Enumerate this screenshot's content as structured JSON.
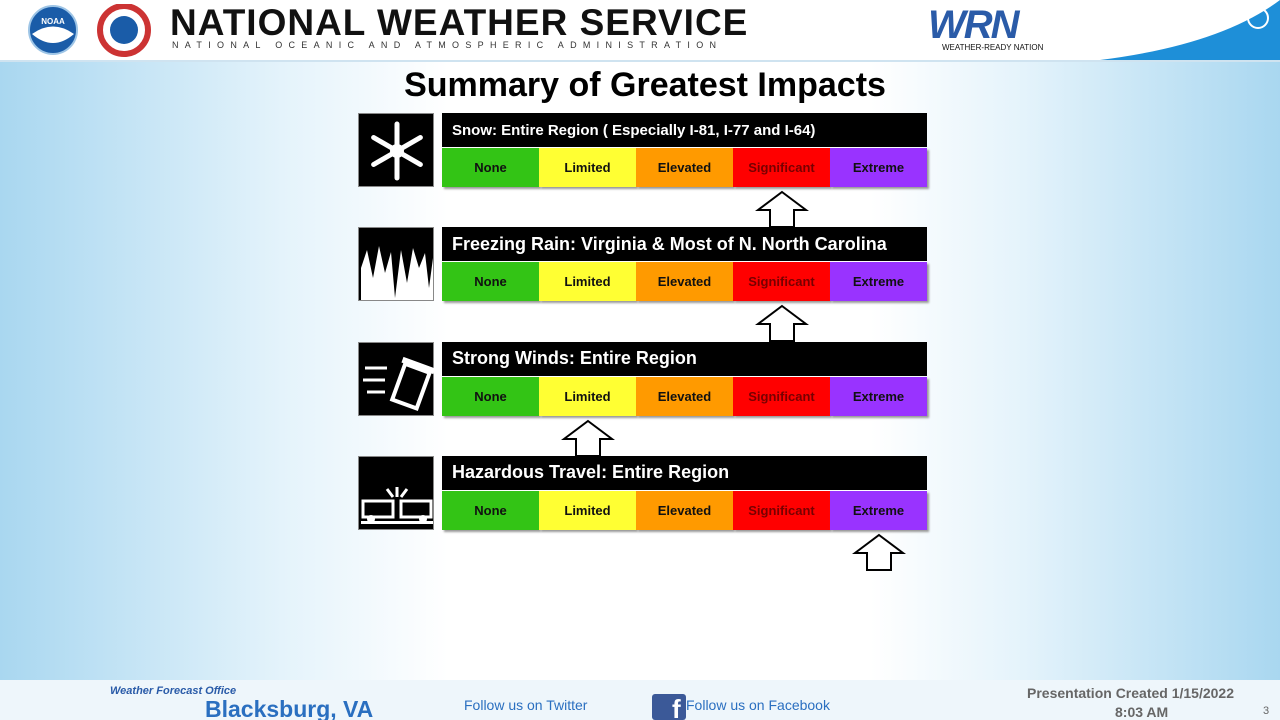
{
  "header": {
    "noaa_logo": "NOAA",
    "title": "NATIONAL WEATHER SERVICE",
    "subtitle": "NATIONAL OCEANIC AND ATMOSPHERIC ADMINISTRATION",
    "wrn_logo": "WRN",
    "wrn_caption": "WEATHER-READY NATION"
  },
  "slide": {
    "title": "Summary of Greatest Impacts",
    "levels": [
      "None",
      "Limited",
      "Elevated",
      "Significant",
      "Extreme"
    ],
    "impacts": [
      {
        "icon": "snow",
        "title": "Snow: Entire Region ( Especially I-81, I-77 and I-64)",
        "level": "Significant"
      },
      {
        "icon": "ice",
        "title": "Freezing Rain: Virginia & Most of N. North Carolina",
        "level": "Significant"
      },
      {
        "icon": "wind",
        "title": "Strong Winds: Entire Region",
        "level": "Limited"
      },
      {
        "icon": "travel",
        "title": "Hazardous Travel: Entire Region",
        "level": "Extreme"
      }
    ]
  },
  "footer": {
    "office_label": "Weather Forecast Office",
    "office": "Blacksburg, VA",
    "twitter": "Follow us on Twitter",
    "facebook": "Follow us on Facebook",
    "created": "Presentation Created 1/15/2022",
    "time": "8:03 AM",
    "page": "3"
  }
}
